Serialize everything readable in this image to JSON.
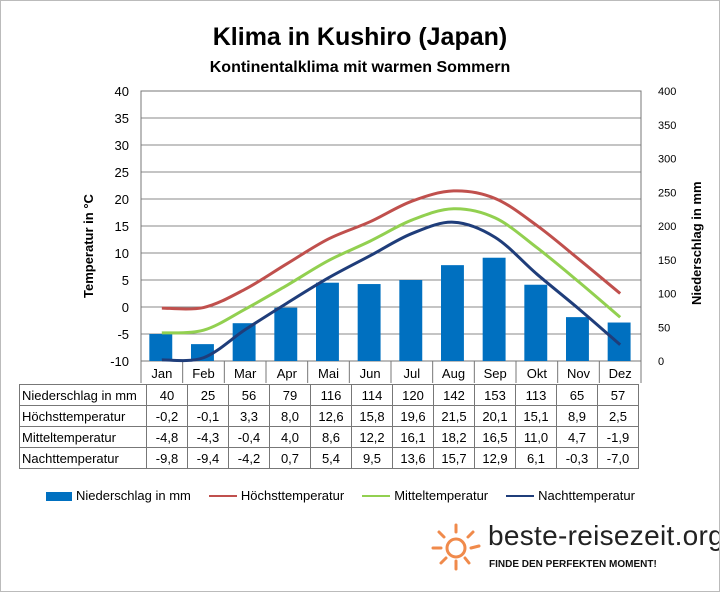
{
  "chart_data": {
    "type": "bar+line",
    "title": "Klima in Kushiro (Japan)",
    "subtitle": "Kontinentalklima mit warmen Sommern",
    "ylabel_left": "Temperatur in °C",
    "ylabel_right": "Niederschlag in mm",
    "ylim_left": [
      -10,
      40
    ],
    "ylim_right": [
      0,
      400
    ],
    "yticks_left": [
      "40",
      "35",
      "30",
      "25",
      "20",
      "15",
      "10",
      "5",
      "0",
      "-5",
      "-10"
    ],
    "yticks_right": [
      "400",
      "350",
      "300",
      "250",
      "200",
      "150",
      "100",
      "50",
      "0"
    ],
    "categories": [
      "Jan",
      "Feb",
      "Mar",
      "Apr",
      "Mai",
      "Jun",
      "Jul",
      "Aug",
      "Sep",
      "Okt",
      "Nov",
      "Dez"
    ],
    "series": [
      {
        "name": "Niederschlag in mm",
        "type": "bar",
        "axis": "right",
        "color": "#0070c0",
        "values": [
          40,
          25,
          56,
          79,
          116,
          114,
          120,
          142,
          153,
          113,
          65,
          57
        ],
        "labels": [
          "40",
          "25",
          "56",
          "79",
          "116",
          "114",
          "120",
          "142",
          "153",
          "113",
          "65",
          "57"
        ]
      },
      {
        "name": "Höchsttemperatur",
        "type": "line",
        "axis": "left",
        "color": "#c0504d",
        "values": [
          -0.2,
          -0.1,
          3.3,
          8.0,
          12.6,
          15.8,
          19.6,
          21.5,
          20.1,
          15.1,
          8.9,
          2.5
        ],
        "labels": [
          "-0,2",
          "-0,1",
          "3,3",
          "8,0",
          "12,6",
          "15,8",
          "19,6",
          "21,5",
          "20,1",
          "15,1",
          "8,9",
          "2,5"
        ]
      },
      {
        "name": "Mitteltemperatur",
        "type": "line",
        "axis": "left",
        "color": "#92d050",
        "values": [
          -4.8,
          -4.3,
          -0.4,
          4.0,
          8.6,
          12.2,
          16.1,
          18.2,
          16.5,
          11.0,
          4.7,
          -1.9
        ],
        "labels": [
          "-4,8",
          "-4,3",
          "-0,4",
          "4,0",
          "8,6",
          "12,2",
          "16,1",
          "18,2",
          "16,5",
          "11,0",
          "4,7",
          "-1,9"
        ]
      },
      {
        "name": "Nachttemperatur",
        "type": "line",
        "axis": "left",
        "color": "#1f3d7a",
        "values": [
          -9.8,
          -9.4,
          -4.2,
          0.7,
          5.4,
          9.5,
          13.6,
          15.7,
          12.9,
          6.1,
          -0.3,
          -7.0
        ],
        "labels": [
          "-9,8",
          "-9,4",
          "-4,2",
          "0,7",
          "5,4",
          "9,5",
          "13,6",
          "15,7",
          "12,9",
          "6,1",
          "-0,3",
          "-7,0"
        ]
      }
    ],
    "grid": true,
    "legend": "bottom"
  },
  "logo": {
    "text": "beste-reisezeit.org",
    "tagline": "FINDE DEN PERFEKTEN MOMENT!"
  }
}
